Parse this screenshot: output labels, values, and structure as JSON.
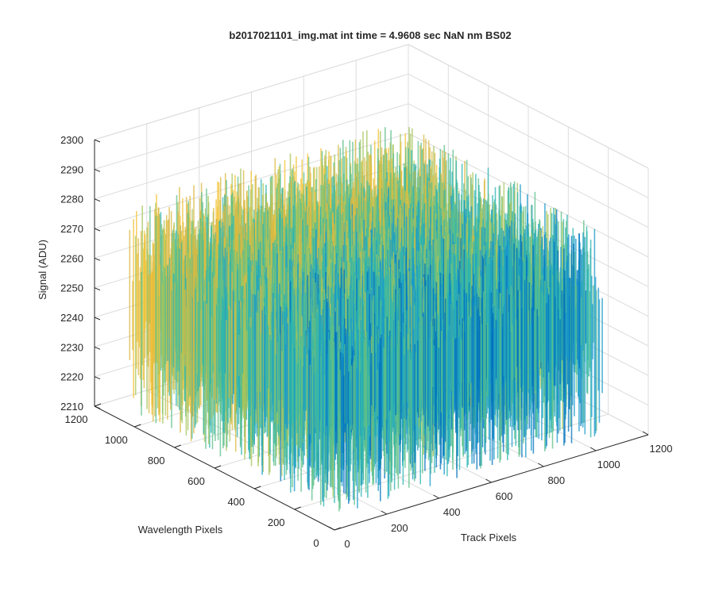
{
  "chart_data": {
    "type": "surface",
    "title": "b2017021101_img.mat int time = 4.9608 sec  NaN nm BS02",
    "xlabel": "Track Pixels",
    "ylabel": "Wavelength Pixels",
    "zlabel": "Signal (ADU)",
    "xlim": [
      0,
      1200
    ],
    "ylim": [
      0,
      1200
    ],
    "zlim": [
      2210,
      2300
    ],
    "x_ticks": [
      "0",
      "200",
      "400",
      "600",
      "800",
      "1000",
      "1200"
    ],
    "y_ticks": [
      "0",
      "200",
      "400",
      "600",
      "800",
      "1000",
      "1200"
    ],
    "z_ticks": [
      "2210",
      "2220",
      "2230",
      "2240",
      "2250",
      "2260",
      "2270",
      "2280",
      "2290",
      "2300"
    ],
    "surface": {
      "x_range": [
        0,
        1024
      ],
      "y_range": [
        0,
        1024
      ],
      "mean_signal": 2252,
      "noise_min": 2215,
      "noise_max": 2285
    },
    "colormap": [
      "#0072bd",
      "#1a9aca",
      "#2cb4b0",
      "#5cbf8a",
      "#a6c45c",
      "#d9b842",
      "#f2c233"
    ],
    "grid": true
  }
}
